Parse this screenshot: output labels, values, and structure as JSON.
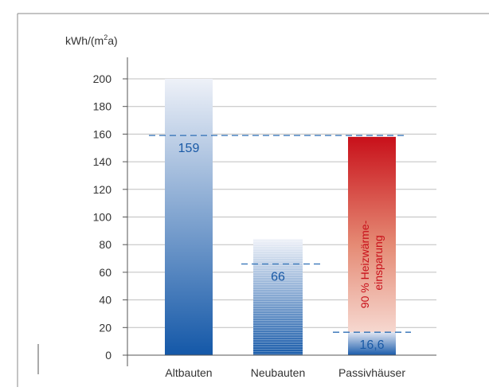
{
  "chart_data": {
    "type": "bar",
    "ylabel_prefix": "kWh/(m",
    "ylabel_sup": "2",
    "ylabel_suffix": "a)",
    "ylim": [
      0,
      200
    ],
    "yticks": [
      0,
      20,
      40,
      60,
      80,
      100,
      120,
      140,
      160,
      180,
      200
    ],
    "grid": true,
    "categories": [
      "Altbauten",
      "Neubauten",
      "Passivhäuser"
    ],
    "values": [
      200,
      84,
      158
    ],
    "dashed_markers": [
      {
        "category": "Altbauten",
        "value": 159,
        "label": "159"
      },
      {
        "category": "Neubauten",
        "value": 66,
        "label": "66"
      },
      {
        "category": "Passivhäuser",
        "value": 16.6,
        "label": "16,6"
      }
    ],
    "annotation": {
      "line1": "90 % Heizwärme-",
      "line2": "einsparung"
    },
    "colors": {
      "blue_dark": "#1458a8",
      "blue_light": "#e9edf6",
      "red_dark": "#c8101a",
      "red_light": "#f4c8c0",
      "dash": "#2e6fb5",
      "axis": "#555555",
      "grid": "#bfbfbf",
      "label_blue": "#1a5aa6",
      "annotation_red": "#c8101a"
    }
  }
}
